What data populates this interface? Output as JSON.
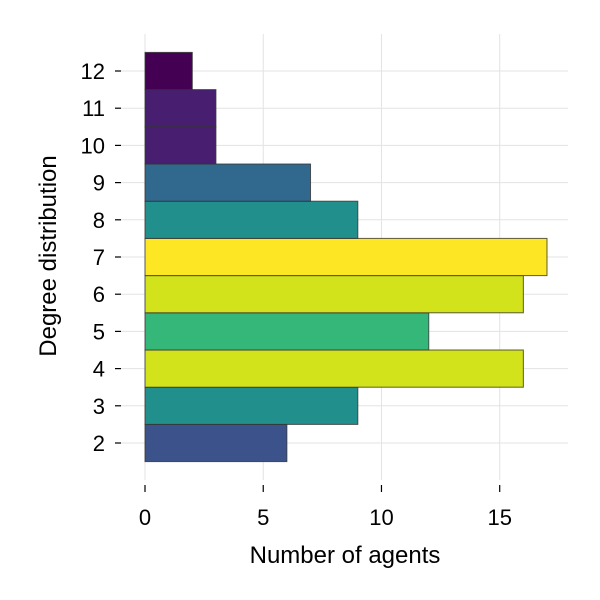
{
  "chart_data": {
    "type": "bar",
    "orientation": "horizontal",
    "title": "",
    "xlabel": "Number of agents",
    "ylabel": "Degree distribution",
    "xlim": [
      0,
      18
    ],
    "xticks": [
      0,
      5,
      10,
      15
    ],
    "grid": true,
    "categories": [
      "2",
      "3",
      "4",
      "5",
      "6",
      "7",
      "8",
      "9",
      "10",
      "11",
      "12"
    ],
    "values": [
      6,
      9,
      16,
      12,
      16,
      17,
      9,
      7,
      3,
      3,
      2
    ],
    "colors": [
      "#3b528b",
      "#21908d",
      "#d2e21b",
      "#35b779",
      "#d2e21b",
      "#fde725",
      "#21908d",
      "#31688e",
      "#481f70",
      "#481f70",
      "#440154"
    ]
  }
}
